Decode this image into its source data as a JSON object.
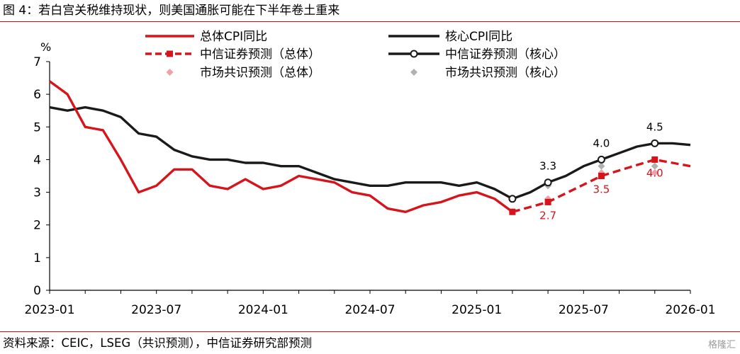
{
  "header": {
    "title": "图 4：若白宫关税维持现状，则美国通胀可能在下半年卷土重来"
  },
  "footer": {
    "source": "资料来源：CEIC，LSEG（共识预测），中信证券研究部预测",
    "watermark": "格隆汇"
  },
  "colors": {
    "headline": "#d7141b",
    "core": "#1a1a1a",
    "consensus_headline": "#f2a0a8",
    "consensus_core": "#b0b0b0",
    "rule": "#b4161b"
  },
  "chart_data": {
    "type": "line",
    "y_unit": "%",
    "ylim": [
      0,
      7
    ],
    "y_ticks": [
      "0",
      "1",
      "2",
      "3",
      "4",
      "5",
      "6",
      "7"
    ],
    "x_ticks": [
      "2023-01",
      "2023-07",
      "2024-01",
      "2024-07",
      "2025-01",
      "2025-07",
      "2026-01"
    ],
    "months": [
      "2023-01",
      "2023-02",
      "2023-03",
      "2023-04",
      "2023-05",
      "2023-06",
      "2023-07",
      "2023-08",
      "2023-09",
      "2023-10",
      "2023-11",
      "2023-12",
      "2024-01",
      "2024-02",
      "2024-03",
      "2024-04",
      "2024-05",
      "2024-06",
      "2024-07",
      "2024-08",
      "2024-09",
      "2024-10",
      "2024-11",
      "2024-12",
      "2025-01",
      "2025-02",
      "2025-03",
      "2025-04",
      "2025-05",
      "2025-06",
      "2025-07",
      "2025-08",
      "2025-09",
      "2025-10",
      "2025-11",
      "2025-12",
      "2026-01"
    ],
    "legend": [
      {
        "key": "headline",
        "label": "总体CPI同比"
      },
      {
        "key": "core",
        "label": "核心CPI同比"
      },
      {
        "key": "forecast_headline",
        "label": "中信证券预测（总体）"
      },
      {
        "key": "forecast_core",
        "label": "中信证券预测（核心）"
      },
      {
        "key": "consensus_headline",
        "label": "市场共识预测（总体）"
      },
      {
        "key": "consensus_core",
        "label": "市场共识预测（核心）"
      }
    ],
    "series": [
      {
        "name": "总体CPI同比",
        "x": [
          "2023-01",
          "2023-02",
          "2023-03",
          "2023-04",
          "2023-05",
          "2023-06",
          "2023-07",
          "2023-08",
          "2023-09",
          "2023-10",
          "2023-11",
          "2023-12",
          "2024-01",
          "2024-02",
          "2024-03",
          "2024-04",
          "2024-05",
          "2024-06",
          "2024-07",
          "2024-08",
          "2024-09",
          "2024-10",
          "2024-11",
          "2024-12",
          "2025-01",
          "2025-02",
          "2025-03"
        ],
        "values": [
          6.4,
          6.0,
          5.0,
          4.9,
          4.0,
          3.0,
          3.2,
          3.7,
          3.7,
          3.2,
          3.1,
          3.4,
          3.1,
          3.2,
          3.5,
          3.4,
          3.3,
          3.0,
          2.9,
          2.5,
          2.4,
          2.6,
          2.7,
          2.9,
          3.0,
          2.8,
          2.4
        ]
      },
      {
        "name": "核心CPI同比",
        "x": [
          "2023-01",
          "2023-02",
          "2023-03",
          "2023-04",
          "2023-05",
          "2023-06",
          "2023-07",
          "2023-08",
          "2023-09",
          "2023-10",
          "2023-11",
          "2023-12",
          "2024-01",
          "2024-02",
          "2024-03",
          "2024-04",
          "2024-05",
          "2024-06",
          "2024-07",
          "2024-08",
          "2024-09",
          "2024-10",
          "2024-11",
          "2024-12",
          "2025-01",
          "2025-02",
          "2025-03",
          "2025-04",
          "2025-05",
          "2025-06",
          "2025-07",
          "2025-08",
          "2025-09",
          "2025-10",
          "2025-11",
          "2025-12",
          "2026-01"
        ],
        "values": [
          5.6,
          5.5,
          5.6,
          5.5,
          5.3,
          4.8,
          4.7,
          4.3,
          4.1,
          4.0,
          4.0,
          3.9,
          3.9,
          3.8,
          3.8,
          3.6,
          3.4,
          3.3,
          3.2,
          3.2,
          3.3,
          3.3,
          3.3,
          3.2,
          3.3,
          3.1,
          2.8,
          3.0,
          3.3,
          3.5,
          3.8,
          4.0,
          4.2,
          4.4,
          4.5,
          4.5,
          4.45
        ]
      },
      {
        "name": "中信证券预测（总体）",
        "x": [
          "2025-03",
          "2025-05",
          "2025-08",
          "2025-11",
          "2026-01"
        ],
        "values": [
          2.4,
          2.7,
          3.5,
          4.0,
          3.8
        ]
      },
      {
        "name": "中信证券预测（核心）",
        "x": [
          "2025-03",
          "2025-05",
          "2025-08",
          "2025-11"
        ],
        "values": [
          2.8,
          3.3,
          4.0,
          4.5
        ]
      },
      {
        "name": "市场共识预测（总体）",
        "x": [
          "2025-03",
          "2025-05",
          "2025-08",
          "2025-11"
        ],
        "values": [
          2.4,
          2.8,
          3.6,
          3.6
        ]
      },
      {
        "name": "市场共识预测（核心）",
        "x": [
          "2025-03",
          "2025-05",
          "2025-08",
          "2025-11"
        ],
        "values": [
          2.8,
          3.2,
          3.8,
          3.8
        ]
      }
    ],
    "annotations": [
      {
        "text": "2.7",
        "x": "2025-05",
        "value": 2.7,
        "series": "forecast_headline"
      },
      {
        "text": "3.5",
        "x": "2025-08",
        "value": 3.5,
        "series": "forecast_headline"
      },
      {
        "text": "4.0",
        "x": "2025-11",
        "value": 4.0,
        "series": "forecast_headline"
      },
      {
        "text": "3.3",
        "x": "2025-05",
        "value": 3.3,
        "series": "forecast_core"
      },
      {
        "text": "4.0",
        "x": "2025-08",
        "value": 4.0,
        "series": "forecast_core"
      },
      {
        "text": "4.5",
        "x": "2025-11",
        "value": 4.5,
        "series": "forecast_core"
      }
    ]
  }
}
